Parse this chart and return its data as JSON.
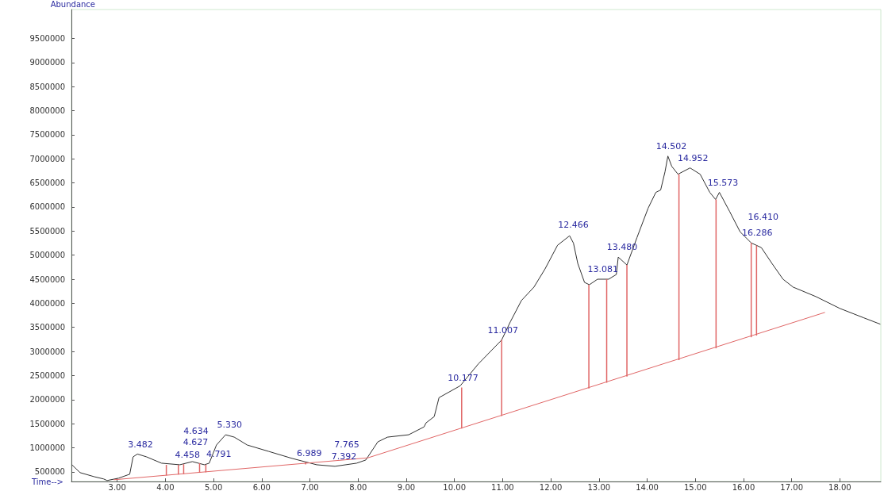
{
  "chart_data": {
    "type": "line",
    "xlabel": "Time-->",
    "ylabel": "Abundance",
    "xlim": [
      2.05,
      18.85
    ],
    "ylim": [
      300000,
      10100000
    ],
    "xticks": [
      {
        "value": 3,
        "label": "3.00"
      },
      {
        "value": 4,
        "label": "4.00"
      },
      {
        "value": 5,
        "label": "5.00"
      },
      {
        "value": 6,
        "label": "6.00"
      },
      {
        "value": 7,
        "label": "7.00"
      },
      {
        "value": 8,
        "label": "8.00"
      },
      {
        "value": 9,
        "label": "9.00"
      },
      {
        "value": 10,
        "label": "10.00"
      },
      {
        "value": 11,
        "label": "11.00"
      },
      {
        "value": 12,
        "label": "12.00"
      },
      {
        "value": 13,
        "label": "13.00"
      },
      {
        "value": 14,
        "label": "14.00"
      },
      {
        "value": 15,
        "label": "15.00"
      },
      {
        "value": 16,
        "label": "16.00"
      },
      {
        "value": 17,
        "label": "17.00"
      },
      {
        "value": 18,
        "label": "18.00"
      }
    ],
    "yticks": [
      500000,
      1000000,
      1500000,
      2000000,
      2500000,
      3000000,
      3500000,
      4000000,
      4500000,
      5000000,
      5500000,
      6000000,
      6500000,
      7000000,
      7500000,
      8000000,
      8500000,
      9000000,
      9500000
    ],
    "grid": false,
    "marker": "none",
    "series": [
      {
        "color": "#303030",
        "x": [
          2.06,
          2.23,
          2.52,
          2.72,
          2.79,
          3.03,
          3.26,
          3.33,
          3.42,
          3.61,
          3.92,
          4.3,
          4.56,
          4.81,
          4.91,
          5.06,
          5.25,
          5.43,
          5.7,
          6.14,
          6.63,
          7.14,
          7.52,
          7.97,
          8.16,
          8.41,
          8.61,
          9.05,
          9.37,
          9.41,
          9.58,
          9.68,
          10.12,
          10.5,
          10.98,
          11.16,
          11.39,
          11.65,
          11.88,
          12.14,
          12.39,
          12.47,
          12.56,
          12.7,
          12.8,
          12.97,
          13.2,
          13.36,
          13.4,
          13.58,
          13.79,
          14.02,
          14.18,
          14.28,
          14.37,
          14.43,
          14.51,
          14.64,
          14.89,
          15.1,
          15.3,
          15.42,
          15.5,
          15.71,
          15.93,
          16.16,
          16.37,
          16.59,
          16.82,
          17.03,
          17.5,
          18.0,
          18.5,
          18.84
        ],
        "values": [
          647000,
          484000,
          400000,
          352000,
          320000,
          369000,
          451000,
          811000,
          870000,
          811000,
          680000,
          647000,
          713000,
          647000,
          680000,
          1057000,
          1270000,
          1221000,
          1057000,
          926000,
          779000,
          647000,
          615000,
          680000,
          746000,
          1123000,
          1221000,
          1270000,
          1434000,
          1516000,
          1647000,
          2041000,
          2287000,
          2746000,
          3238000,
          3615000,
          4057000,
          4336000,
          4713000,
          5205000,
          5402000,
          5250000,
          4828000,
          4434000,
          4385000,
          4500000,
          4500000,
          4598000,
          4959000,
          4795000,
          5369000,
          5975000,
          6303000,
          6352000,
          6729000,
          7057000,
          6844000,
          6680000,
          6811000,
          6680000,
          6303000,
          6156000,
          6303000,
          5910000,
          5483000,
          5254000,
          5156000,
          4828000,
          4500000,
          4336000,
          4140000,
          3893000,
          3697000,
          3566000
        ]
      },
      {
        "type": "line",
        "color": "#e06666",
        "x": [
          2.93,
          8.2,
          17.69
        ],
        "values": [
          336000,
          790000,
          3811000
        ]
      },
      {
        "type": "bar",
        "color": "#e06666",
        "x": [
          4.02,
          4.27,
          4.38,
          4.71,
          4.84,
          6.91,
          10.15,
          10.98,
          12.79,
          13.16,
          13.58,
          14.66,
          15.43,
          16.16,
          16.27
        ],
        "base": [
          425000,
          445000,
          455000,
          480000,
          490000,
          655000,
          1400000,
          1660000,
          2230000,
          2350000,
          2480000,
          2820000,
          3065000,
          3295000,
          3330000
        ],
        "values": [
          220000,
          200000,
          205000,
          200000,
          160000,
          45000,
          850000,
          1580000,
          2155000,
          2150000,
          2315000,
          3860000,
          3091000,
          1959000,
          1870000
        ]
      }
    ],
    "annotations": [
      {
        "text": "3.482",
        "x": 3.482,
        "y": 860000
      },
      {
        "text": "4.458",
        "x": 4.458,
        "y": 650000
      },
      {
        "text": "4.627",
        "x": 4.627,
        "y": 700000
      },
      {
        "text": "4.634",
        "x": 4.634,
        "y": 720000
      },
      {
        "text": "4.791",
        "x": 4.791,
        "y": 660000
      },
      {
        "text": "5.330",
        "x": 5.33,
        "y": 1270000
      },
      {
        "text": "6.989",
        "x": 6.989,
        "y": 680000
      },
      {
        "text": "7.392",
        "x": 7.392,
        "y": 615000
      },
      {
        "text": "7.765",
        "x": 7.765,
        "y": 640000
      },
      {
        "text": "10.177",
        "x": 10.177,
        "y": 2250000
      },
      {
        "text": "11.007",
        "x": 11.007,
        "y": 3240000
      },
      {
        "text": "12.466",
        "x": 12.466,
        "y": 5420000
      },
      {
        "text": "13.081",
        "x": 13.081,
        "y": 4500000
      },
      {
        "text": "13.480",
        "x": 13.48,
        "y": 4960000
      },
      {
        "text": "14.502",
        "x": 14.502,
        "y": 7060000
      },
      {
        "text": "14.952",
        "x": 14.952,
        "y": 6800000
      },
      {
        "text": "15.573",
        "x": 15.573,
        "y": 6300000
      },
      {
        "text": "16.286",
        "x": 16.286,
        "y": 5250000
      },
      {
        "text": "16.410",
        "x": 16.41,
        "y": 5160000
      }
    ]
  }
}
